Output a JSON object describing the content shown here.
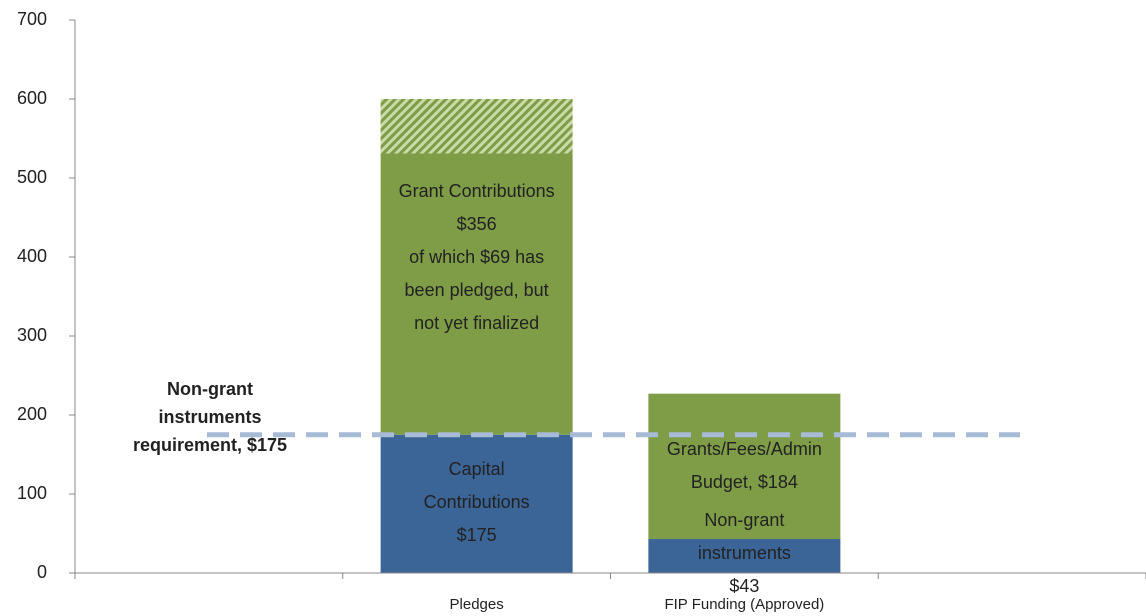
{
  "chart_data": {
    "type": "stacked_bar",
    "categories": [
      null,
      "Pledges",
      "FIP Funding (Approved)",
      null
    ],
    "series": [
      {
        "color": "#3b6497",
        "values": [
          null,
          175,
          43,
          null
        ],
        "value_labels": [
          null,
          [
            "Capital",
            "Contributions",
            "$175"
          ],
          [
            "Non-grant",
            "instruments",
            "$43"
          ],
          null
        ]
      },
      {
        "color": "#7f9c47",
        "values": [
          null,
          356,
          184,
          null
        ],
        "value_labels": [
          null,
          [
            "Grant Contributions",
            "$356",
            "of which $69 has",
            "been pledged, but",
            "not yet finalized"
          ],
          [
            "Grants/Fees/Admin",
            "Budget, $184"
          ],
          null
        ]
      },
      {
        "color": "#7f9c47",
        "pattern": "hatch",
        "values": [
          null,
          69,
          null,
          null
        ]
      }
    ],
    "reference_line": {
      "value": 175,
      "color": "#a7bad6",
      "style": "dashed",
      "label": [
        "Non-grant",
        "instruments",
        "requirement, $175"
      ]
    },
    "ylim": [
      0,
      700
    ],
    "yticks": [
      0,
      100,
      200,
      300,
      400,
      500,
      600,
      700
    ]
  }
}
